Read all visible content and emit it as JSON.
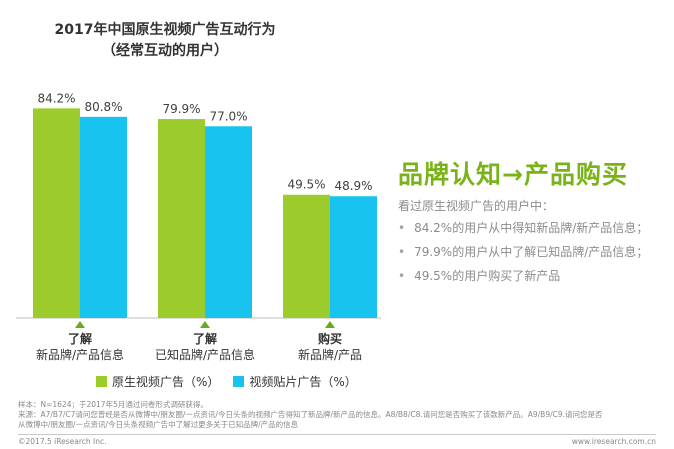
{
  "title_line1": "2017年中国原生视频广告互动行为",
  "title_line2": "（经常互动的用户）",
  "chart_data": {
    "type": "bar",
    "title": "2017年中国原生视频广告互动行为（经常互动的用户）",
    "categories": [
      {
        "top": "了解",
        "bottom": "新品牌/产品信息"
      },
      {
        "top": "了解",
        "bottom": "已知品牌/产品信息"
      },
      {
        "top": "购买",
        "bottom": "新品牌/产品"
      }
    ],
    "series": [
      {
        "name": "原生视频广告（%）",
        "color": "#9ccc2b",
        "values": [
          84.2,
          79.9,
          49.5
        ],
        "labels": [
          "84.2%",
          "79.9%",
          "49.5%"
        ]
      },
      {
        "name": "视频贴片广告（%）",
        "color": "#19c3f0",
        "values": [
          80.8,
          77.0,
          48.9
        ],
        "labels": [
          "80.8%",
          "77.0%",
          "48.9%"
        ]
      }
    ],
    "ylim": [
      0,
      100
    ],
    "grid": false,
    "legend": "bottom"
  },
  "insight": {
    "title": "品牌认知→产品购买",
    "intro": "看过原生视频广告的用户中：",
    "items": [
      "84.2%的用户从中得知新品牌/新产品信息；",
      "79.9%的用户从中了解已知品牌/产品信息；",
      "49.5%的用户购买了新产品"
    ]
  },
  "footnote": {
    "sample": "样本：N=1624；于2017年5月通过问卷形式调研获得。",
    "source1": "来源：A7/B7/C7请问您曾经是否从微博中/朋友圈/一点资讯/今日头条的视频广告得知了新品牌/新产品的信息。A8/B8/C8.请问您是否购买了该款新产品。A9/B9/C9.请问您是否",
    "source2": "从微博中/朋友圈/一点资讯/今日头条视频广告中了解过更多关于已知品牌/产品的信息"
  },
  "copyright": "©2017.5 iResearch Inc.",
  "site": "www.iresearch.com.cn"
}
